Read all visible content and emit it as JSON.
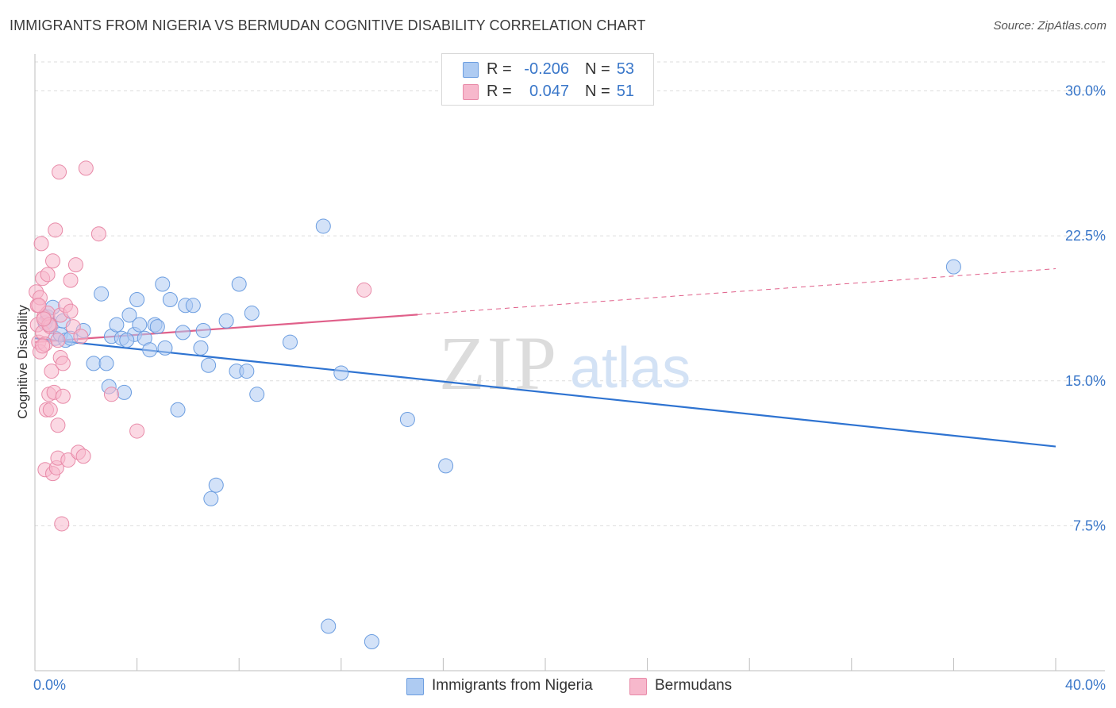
{
  "header": {
    "title": "IMMIGRANTS FROM NIGERIA VS BERMUDAN COGNITIVE DISABILITY CORRELATION CHART",
    "source": "Source: ZipAtlas.com"
  },
  "watermark": {
    "zip": "ZIP",
    "atlas": "atlas"
  },
  "legend": {
    "r_label": "R =",
    "n_label": "N =",
    "rows": [
      {
        "r_value": "-0.206",
        "n_value": "53",
        "color": "#aecbf2"
      },
      {
        "r_value": "0.047",
        "n_value": "51",
        "color": "#f7b8cc"
      }
    ]
  },
  "bottom_legend": {
    "items": [
      {
        "label": "Immigrants from Nigeria",
        "color": "#aecbf2"
      },
      {
        "label": "Bermudans",
        "color": "#f7b8cc"
      }
    ]
  },
  "colors": {
    "blue_fill": "#aecbf2",
    "blue_stroke": "#6b9de0",
    "blue_line": "#2e73d1",
    "pink_fill": "#f7b8cc",
    "pink_stroke": "#e88aa8",
    "pink_line": "#e0608a",
    "tick_text": "#3a77c9",
    "grid": "#dddddd"
  },
  "chart_data": {
    "type": "scatter",
    "title": "IMMIGRANTS FROM NIGERIA VS BERMUDAN COGNITIVE DISABILITY CORRELATION CHART",
    "xlabel": "",
    "ylabel": "Cognitive Disability",
    "xlim": [
      0,
      40
    ],
    "ylim": [
      0,
      31.5
    ],
    "x_tick_labels": [
      "0.0%",
      "40.0%"
    ],
    "y_ticks": [
      7.5,
      15.0,
      22.5,
      30.0
    ],
    "y_tick_labels": [
      "7.5%",
      "15.0%",
      "22.5%",
      "30.0%"
    ],
    "grid": true,
    "legend_position": "top-center",
    "series": [
      {
        "name": "Immigrants from Nigeria",
        "r": -0.206,
        "n": 53,
        "trend": {
          "x": [
            0,
            40
          ],
          "y": [
            17.2,
            11.6
          ],
          "dashed_from": null
        },
        "points": [
          [
            0.4,
            18.0
          ],
          [
            0.5,
            18.3
          ],
          [
            0.6,
            17.9
          ],
          [
            0.7,
            18.8
          ],
          [
            0.8,
            17.2
          ],
          [
            1.0,
            17.4
          ],
          [
            1.2,
            17.1
          ],
          [
            1.4,
            17.2
          ],
          [
            1.9,
            17.6
          ],
          [
            2.3,
            15.9
          ],
          [
            2.6,
            19.5
          ],
          [
            2.8,
            15.9
          ],
          [
            2.9,
            14.7
          ],
          [
            3.0,
            17.3
          ],
          [
            3.2,
            17.9
          ],
          [
            3.4,
            17.2
          ],
          [
            3.5,
            14.4
          ],
          [
            3.7,
            18.4
          ],
          [
            3.9,
            17.4
          ],
          [
            4.0,
            19.2
          ],
          [
            4.1,
            17.9
          ],
          [
            4.3,
            17.2
          ],
          [
            4.5,
            16.6
          ],
          [
            4.7,
            17.9
          ],
          [
            4.8,
            17.8
          ],
          [
            5.0,
            20.0
          ],
          [
            5.1,
            16.7
          ],
          [
            5.3,
            19.2
          ],
          [
            5.6,
            13.5
          ],
          [
            5.8,
            17.5
          ],
          [
            5.9,
            18.9
          ],
          [
            6.2,
            18.9
          ],
          [
            6.5,
            16.7
          ],
          [
            6.6,
            17.6
          ],
          [
            6.8,
            15.8
          ],
          [
            7.1,
            9.6
          ],
          [
            7.5,
            18.1
          ],
          [
            7.9,
            15.5
          ],
          [
            8.0,
            20.0
          ],
          [
            8.3,
            15.5
          ],
          [
            8.5,
            18.5
          ],
          [
            8.7,
            14.3
          ],
          [
            10.0,
            17.0
          ],
          [
            11.3,
            23.0
          ],
          [
            11.5,
            2.3
          ],
          [
            12.0,
            15.4
          ],
          [
            13.2,
            1.5
          ],
          [
            14.6,
            13.0
          ],
          [
            16.1,
            10.6
          ],
          [
            36.0,
            20.9
          ],
          [
            6.9,
            8.9
          ],
          [
            1.1,
            18.1
          ],
          [
            3.6,
            17.1
          ]
        ]
      },
      {
        "name": "Bermudans",
        "r": 0.047,
        "n": 51,
        "trend": {
          "x": [
            0,
            40
          ],
          "y": [
            17.0,
            20.8
          ],
          "dashed_from": 15.0
        },
        "points": [
          [
            0.05,
            19.6
          ],
          [
            0.1,
            18.9
          ],
          [
            0.1,
            17.9
          ],
          [
            0.15,
            17.0
          ],
          [
            0.2,
            16.5
          ],
          [
            0.2,
            19.3
          ],
          [
            0.25,
            22.1
          ],
          [
            0.3,
            20.3
          ],
          [
            0.3,
            17.5
          ],
          [
            0.35,
            18.3
          ],
          [
            0.4,
            16.9
          ],
          [
            0.4,
            10.4
          ],
          [
            0.45,
            13.5
          ],
          [
            0.5,
            20.5
          ],
          [
            0.5,
            18.5
          ],
          [
            0.55,
            14.3
          ],
          [
            0.6,
            13.5
          ],
          [
            0.6,
            17.8
          ],
          [
            0.65,
            15.5
          ],
          [
            0.7,
            21.2
          ],
          [
            0.7,
            10.2
          ],
          [
            0.75,
            14.4
          ],
          [
            0.8,
            22.8
          ],
          [
            0.85,
            10.5
          ],
          [
            0.9,
            12.7
          ],
          [
            0.9,
            11.0
          ],
          [
            0.95,
            25.8
          ],
          [
            1.0,
            18.4
          ],
          [
            1.0,
            16.2
          ],
          [
            1.05,
            7.6
          ],
          [
            1.1,
            15.9
          ],
          [
            1.1,
            14.2
          ],
          [
            1.2,
            18.9
          ],
          [
            1.3,
            10.9
          ],
          [
            1.4,
            18.6
          ],
          [
            1.4,
            20.2
          ],
          [
            1.5,
            17.8
          ],
          [
            1.6,
            21.0
          ],
          [
            1.7,
            11.3
          ],
          [
            1.8,
            17.3
          ],
          [
            1.9,
            11.1
          ],
          [
            2.0,
            26.0
          ],
          [
            2.5,
            22.6
          ],
          [
            3.0,
            14.3
          ],
          [
            4.0,
            12.4
          ],
          [
            0.55,
            17.9
          ],
          [
            0.35,
            18.2
          ],
          [
            0.9,
            17.1
          ],
          [
            0.3,
            16.8
          ],
          [
            12.9,
            19.7
          ],
          [
            0.15,
            18.9
          ]
        ]
      }
    ]
  }
}
